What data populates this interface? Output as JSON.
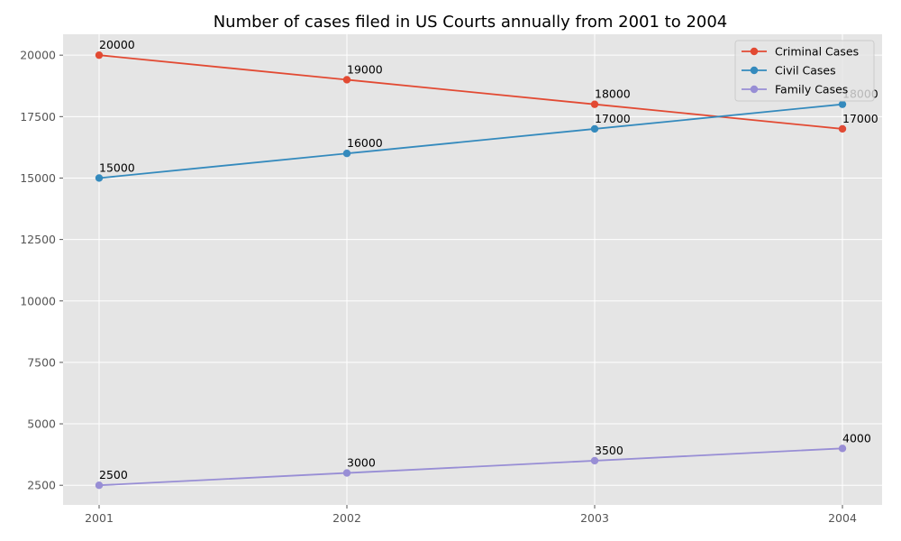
{
  "chart_data": {
    "type": "line",
    "title": "Number of cases filed in US Courts annually from 2001 to 2004",
    "xlabel": "",
    "ylabel": "",
    "x": [
      "2001",
      "2002",
      "2003",
      "2004"
    ],
    "ylim": [
      1700,
      20850
    ],
    "yticks": [
      2500,
      5000,
      7500,
      10000,
      12500,
      15000,
      17500,
      20000
    ],
    "grid": true,
    "legend_position": "top-right",
    "series": [
      {
        "name": "Criminal Cases",
        "color": "#E24A33",
        "values": [
          20000,
          19000,
          18000,
          17000
        ]
      },
      {
        "name": "Civil Cases",
        "color": "#348ABD",
        "values": [
          15000,
          16000,
          17000,
          18000
        ]
      },
      {
        "name": "Family Cases",
        "color": "#988ED5",
        "values": [
          2500,
          3000,
          3500,
          4000
        ]
      }
    ]
  }
}
